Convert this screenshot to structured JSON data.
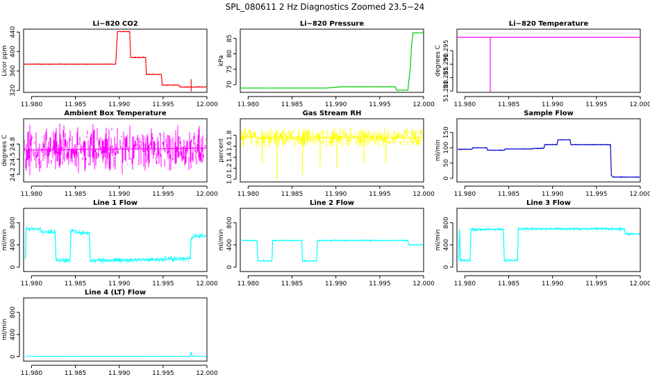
{
  "figure": {
    "title": "SPL_080611  2 Hz Diagnostics Zoomed 23.5−24"
  },
  "colors": {
    "red": "#ff0000",
    "green": "#00cc00",
    "magenta": "#ff00ff",
    "yellow": "#ffff00",
    "blue": "#0000cc",
    "cyan": "#00ffff",
    "axis": "#000000"
  },
  "chart_data": [
    {
      "type": "line",
      "title": "Li−820 CO2",
      "ylabel": "Licor ppm",
      "xlabel": "",
      "color": "red",
      "noise": 1,
      "xlim": [
        11.9791,
        12.0
      ],
      "x_ticks": [
        11.98,
        11.985,
        11.99,
        11.995,
        12.0
      ],
      "x_tick_labels": [
        "11.980",
        "11.985",
        "11.990",
        "11.995",
        "12.000"
      ],
      "ylim": [
        316,
        446
      ],
      "y_ticks": [
        320,
        360,
        400,
        440
      ],
      "y_tick_labels": [
        "320",
        "360",
        "400",
        "440"
      ],
      "x": [
        11.9791,
        11.9896,
        11.9898,
        11.9912,
        11.9913,
        11.993,
        11.9931,
        11.9948,
        11.9949,
        11.9968,
        11.9969,
        12.0
      ],
      "y": [
        374,
        374,
        441,
        441,
        388,
        388,
        353,
        353,
        331,
        331,
        327,
        327
      ],
      "spikes": [
        [
          11.9982,
          318,
          343
        ]
      ]
    },
    {
      "type": "line",
      "title": "Li−820 Pressure",
      "ylabel": "kPa",
      "xlabel": "",
      "color": "green",
      "noise": 0.1,
      "xlim": [
        11.9791,
        12.0
      ],
      "x_ticks": [
        11.98,
        11.985,
        11.99,
        11.995,
        12.0
      ],
      "x_tick_labels": [
        "11.980",
        "11.985",
        "11.990",
        "11.995",
        "12.000"
      ],
      "ylim": [
        67.5,
        88
      ],
      "y_ticks": [
        70,
        75,
        80,
        85
      ],
      "y_tick_labels": [
        "70",
        "75",
        "80",
        "85"
      ],
      "x": [
        11.9791,
        11.989,
        11.9905,
        11.9968,
        11.9969,
        11.9982,
        11.9985,
        11.9986,
        11.9988,
        12.0
      ],
      "y": [
        68.9,
        68.9,
        69.3,
        69.3,
        68.2,
        68.2,
        76.0,
        82.0,
        86.8,
        86.8
      ],
      "spikes": []
    },
    {
      "type": "line",
      "title": "Li−820 Temperature",
      "ylabel": "degrees C",
      "xlabel": "",
      "color": "magenta",
      "noise": 0,
      "xlim": [
        11.9791,
        12.0
      ],
      "x_ticks": [
        11.98,
        11.985,
        11.99,
        11.995,
        12.0
      ],
      "x_tick_labels": [
        "11.980",
        "11.985",
        "11.990",
        "11.995",
        "12.000"
      ],
      "ylim": [
        51.2795,
        51.303
      ],
      "y_ticks": [
        51.28,
        51.285,
        51.29,
        51.295
      ],
      "y_tick_labels": [
        "51.280",
        "51.285",
        "51.290",
        "51.295"
      ],
      "x": [
        11.9791,
        12.0
      ],
      "y": [
        51.3,
        51.3
      ],
      "spikes": [
        [
          11.9829,
          51.2795,
          51.3
        ]
      ]
    },
    {
      "type": "line",
      "title": "Ambient Box Temperature",
      "ylabel": "degrees C",
      "xlabel": "",
      "color": "magenta",
      "noise": 0.28,
      "xlim": [
        11.9791,
        12.0
      ],
      "x_ticks": [
        11.98,
        11.985,
        11.99,
        11.995,
        12.0
      ],
      "x_tick_labels": [
        "11.980",
        "11.985",
        "11.990",
        "11.995",
        "12.000"
      ],
      "ylim": [
        24.05,
        25.3
      ],
      "y_ticks": [
        24.2,
        24.5,
        24.8
      ],
      "y_tick_labels": [
        "24.2",
        "24.5",
        "24.8"
      ],
      "x": [
        11.9791,
        12.0
      ],
      "y": [
        24.68,
        24.72
      ],
      "spikes": []
    },
    {
      "type": "line",
      "title": "Gas Stream RH",
      "ylabel": "percent",
      "xlabel": "",
      "color": "yellow",
      "noise": 0.1,
      "xlim": [
        11.9791,
        12.0
      ],
      "x_ticks": [
        11.98,
        11.985,
        11.99,
        11.995,
        12.0
      ],
      "x_tick_labels": [
        "11.980",
        "11.985",
        "11.990",
        "11.995",
        "12.000"
      ],
      "ylim": [
        0.95,
        2.1
      ],
      "y_ticks": [
        1.0,
        1.2,
        1.4,
        1.6,
        1.8
      ],
      "y_tick_labels": [
        "1.0",
        "1.2",
        "1.4",
        "1.6",
        "1.8"
      ],
      "x": [
        11.9791,
        12.0
      ],
      "y": [
        1.76,
        1.76
      ],
      "spikes": [
        [
          11.9816,
          1.28,
          1.8
        ],
        [
          11.9833,
          1.0,
          1.8
        ],
        [
          11.9862,
          1.08,
          1.8
        ],
        [
          11.9882,
          1.22,
          1.8
        ],
        [
          11.9901,
          1.2,
          1.8
        ],
        [
          11.9932,
          1.3,
          1.8
        ],
        [
          11.9957,
          1.3,
          1.8
        ]
      ]
    },
    {
      "type": "line",
      "title": "Sample Flow",
      "ylabel": "ml/min",
      "xlabel": "",
      "color": "blue",
      "noise": 1.5,
      "xlim": [
        11.9791,
        12.0
      ],
      "x_ticks": [
        11.98,
        11.985,
        11.99,
        11.995,
        12.0
      ],
      "x_tick_labels": [
        "11.980",
        "11.985",
        "11.990",
        "11.995",
        "12.000"
      ],
      "ylim": [
        -12,
        195
      ],
      "y_ticks": [
        0,
        50,
        100,
        150
      ],
      "y_tick_labels": [
        "0",
        "50",
        "100",
        "150"
      ],
      "x": [
        11.9791,
        11.9808,
        11.9809,
        11.9825,
        11.9826,
        11.9845,
        11.9846,
        11.9877,
        11.9878,
        11.989,
        11.9891,
        11.9905,
        11.9906,
        11.992,
        11.9921,
        11.9966,
        11.9967,
        11.9969,
        12.0
      ],
      "y": [
        95,
        95,
        100,
        100,
        92,
        92,
        96,
        96,
        98,
        98,
        110,
        110,
        126,
        126,
        110,
        110,
        10,
        4,
        4
      ],
      "spikes": []
    },
    {
      "type": "line",
      "title": "Line 1 Flow",
      "ylabel": "ml/min",
      "xlabel": "",
      "color": "cyan",
      "noise": 30,
      "xlim": [
        11.9791,
        12.0
      ],
      "x_ticks": [
        11.98,
        11.985,
        11.99,
        11.995,
        12.0
      ],
      "x_tick_labels": [
        "11.980",
        "11.985",
        "11.990",
        "11.995",
        "12.000"
      ],
      "ylim": [
        -80,
        1060
      ],
      "y_ticks": [
        0,
        400,
        800
      ],
      "y_tick_labels": [
        "0",
        "400",
        "800"
      ],
      "x": [
        11.9793,
        11.9794,
        11.981,
        11.9811,
        11.9827,
        11.9828,
        11.9844,
        11.9845,
        11.985,
        11.9851,
        11.9866,
        11.9867,
        11.9878,
        11.9879,
        11.9981,
        11.9982,
        11.9986,
        12.0
      ],
      "y": [
        150,
        690,
        690,
        630,
        630,
        120,
        120,
        660,
        660,
        620,
        620,
        120,
        120,
        120,
        150,
        520,
        560,
        560
      ],
      "spikes": []
    },
    {
      "type": "line",
      "title": "Line 2 Flow",
      "ylabel": "ml/min",
      "xlabel": "",
      "color": "cyan",
      "noise": 12,
      "xlim": [
        11.9791,
        12.0
      ],
      "x_ticks": [
        11.98,
        11.985,
        11.99,
        11.995,
        12.0
      ],
      "x_tick_labels": [
        "11.980",
        "11.985",
        "11.990",
        "11.995",
        "12.000"
      ],
      "ylim": [
        -80,
        1060
      ],
      "y_ticks": [
        0,
        400,
        800
      ],
      "y_tick_labels": [
        "0",
        "400",
        "800"
      ],
      "x": [
        11.9793,
        11.981,
        11.9811,
        11.9827,
        11.9828,
        11.9861,
        11.9862,
        11.9878,
        11.9879,
        11.9982,
        11.9983,
        12.0
      ],
      "y": [
        480,
        480,
        110,
        110,
        480,
        480,
        110,
        110,
        480,
        480,
        400,
        400
      ],
      "spikes": []
    },
    {
      "type": "line",
      "title": "Line 3 Flow",
      "ylabel": "ml/min",
      "xlabel": "",
      "color": "cyan",
      "noise": 20,
      "xlim": [
        11.9791,
        12.0
      ],
      "x_ticks": [
        11.98,
        11.985,
        11.99,
        11.995,
        12.0
      ],
      "x_tick_labels": [
        "11.980",
        "11.985",
        "11.990",
        "11.995",
        "12.000"
      ],
      "ylim": [
        -80,
        1060
      ],
      "y_ticks": [
        0,
        400,
        800
      ],
      "y_tick_labels": [
        "0",
        "400",
        "800"
      ],
      "x": [
        11.9793,
        11.9794,
        11.9795,
        11.9806,
        11.9807,
        11.9844,
        11.9845,
        11.986,
        11.9861,
        11.9982,
        11.9983,
        12.0
      ],
      "y": [
        120,
        690,
        120,
        120,
        680,
        680,
        120,
        120,
        690,
        690,
        600,
        600
      ],
      "spikes": []
    },
    {
      "type": "line",
      "title": "Line 4 (LT) Flow",
      "ylabel": "ml/min",
      "xlabel": "",
      "color": "cyan",
      "noise": 3,
      "xlim": [
        11.9791,
        12.0
      ],
      "x_ticks": [
        11.98,
        11.985,
        11.99,
        11.995,
        12.0
      ],
      "x_tick_labels": [
        "11.980",
        "11.985",
        "11.990",
        "11.995",
        "12.000"
      ],
      "ylim": [
        -80,
        1060
      ],
      "y_ticks": [
        0,
        400,
        800
      ],
      "y_tick_labels": [
        "0",
        "400",
        "800"
      ],
      "x": [
        11.9793,
        11.9981,
        11.9982,
        11.9983,
        11.9984,
        12.0
      ],
      "y": [
        5,
        5,
        80,
        20,
        5,
        5
      ],
      "spikes": []
    }
  ]
}
